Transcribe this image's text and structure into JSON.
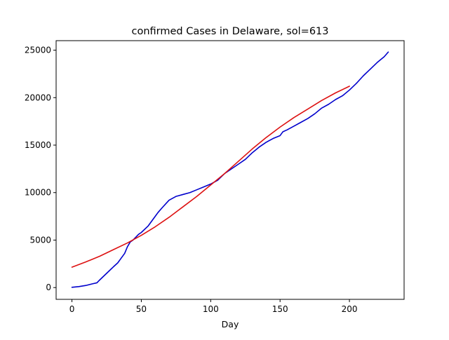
{
  "chart_data": {
    "type": "line",
    "title": "confirmed Cases in Delaware, sol=613",
    "xlabel": "Day",
    "ylabel": "",
    "xlim": [
      -11.4,
      239.4
    ],
    "ylim": [
      -1240,
      26000
    ],
    "xticks": [
      0,
      50,
      100,
      150,
      200
    ],
    "yticks": [
      0,
      5000,
      10000,
      15000,
      20000,
      25000
    ],
    "grid": false,
    "series": [
      {
        "color": "#0000cc",
        "x": [
          0,
          5,
          10,
          15,
          18,
          20,
          25,
          30,
          33,
          35,
          38,
          40,
          42,
          44,
          46,
          48,
          50,
          55,
          60,
          62,
          65,
          70,
          75,
          80,
          85,
          90,
          95,
          100,
          105,
          110,
          115,
          120,
          125,
          130,
          135,
          140,
          145,
          150,
          152,
          155,
          160,
          165,
          170,
          175,
          180,
          185,
          190,
          195,
          200,
          205,
          210,
          215,
          220,
          225,
          228
        ],
        "y": [
          30,
          100,
          220,
          400,
          500,
          800,
          1500,
          2200,
          2600,
          3000,
          3600,
          4300,
          4800,
          5000,
          5300,
          5600,
          5800,
          6500,
          7500,
          7900,
          8400,
          9200,
          9600,
          9800,
          10000,
          10300,
          10600,
          10900,
          11300,
          12000,
          12500,
          13000,
          13500,
          14200,
          14800,
          15300,
          15700,
          16000,
          16400,
          16600,
          17000,
          17400,
          17800,
          18300,
          18900,
          19300,
          19800,
          20200,
          20800,
          21500,
          22300,
          23000,
          23700,
          24300,
          24800
        ]
      },
      {
        "color": "#dd1111",
        "x": [
          0,
          10,
          20,
          30,
          40,
          50,
          60,
          70,
          80,
          90,
          100,
          110,
          120,
          130,
          140,
          150,
          160,
          170,
          180,
          190,
          200
        ],
        "y": [
          2150,
          2700,
          3300,
          4000,
          4700,
          5500,
          6400,
          7400,
          8500,
          9600,
          10800,
          12000,
          13300,
          14600,
          15800,
          16900,
          17900,
          18800,
          19700,
          20500,
          21200
        ]
      }
    ]
  }
}
